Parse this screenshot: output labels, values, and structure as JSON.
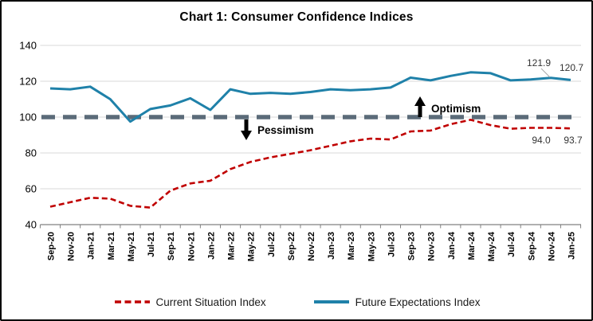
{
  "title": "Chart 1: Consumer Confidence Indices",
  "chart_data": {
    "type": "line",
    "title": "Chart 1: Consumer Confidence Indices",
    "categories": [
      "Sep-20",
      "Nov-20",
      "Jan-21",
      "Mar-21",
      "May-21",
      "Jul-21",
      "Sep-21",
      "Nov-21",
      "Jan-22",
      "Mar-22",
      "May-22",
      "Jul-22",
      "Sep-22",
      "Nov-22",
      "Jan-23",
      "Mar-23",
      "May-23",
      "Jul-23",
      "Sep-23",
      "Nov-23",
      "Jan-24",
      "Mar-24",
      "May-24",
      "Jul-24",
      "Sep-24",
      "Nov-24",
      "Jan-25"
    ],
    "series": [
      {
        "name": "Current Situation Index",
        "color": "#C00000",
        "style": "dashed",
        "values": [
          50,
          52.5,
          55,
          54.5,
          50.5,
          49.5,
          59,
          63,
          64.5,
          71,
          75,
          77.5,
          79.5,
          81.5,
          84,
          86.5,
          88,
          87.5,
          92,
          92.5,
          96,
          98.5,
          95.5,
          93.5,
          94,
          94.0,
          93.7
        ]
      },
      {
        "name": "Future Expectations Index",
        "color": "#1F81A9",
        "style": "solid",
        "values": [
          116,
          115.5,
          117,
          110,
          97.5,
          104.5,
          106.5,
          110.5,
          104,
          115.5,
          113,
          113.5,
          113,
          114,
          115.5,
          115,
          115.5,
          116.5,
          122,
          120.5,
          123,
          125,
          124.5,
          120.5,
          121,
          121.9,
          120.7
        ]
      }
    ],
    "ylim": [
      40,
      140
    ],
    "yticks": [
      40,
      60,
      80,
      100,
      120,
      140
    ],
    "grid": true,
    "legend_position": "bottom",
    "reference_line": {
      "value": 100,
      "color": "#5B6B79",
      "style": "dashed"
    },
    "annotations": [
      {
        "text": "Optimism",
        "direction": "up"
      },
      {
        "text": "Pessimism",
        "direction": "down"
      }
    ],
    "point_labels": [
      {
        "series": "Future Expectations Index",
        "category": "Nov-24",
        "text": "121.9"
      },
      {
        "series": "Future Expectations Index",
        "category": "Jan-25",
        "text": "120.7"
      },
      {
        "series": "Current Situation Index",
        "category": "Nov-24",
        "text": "94.0"
      },
      {
        "series": "Current Situation Index",
        "category": "Jan-25",
        "text": "93.7"
      }
    ],
    "colors": {
      "gridline": "#D9D9D9",
      "axis": "#808080",
      "leader_line": "#A6A6A6",
      "annotation_arrow": "#000000"
    }
  }
}
